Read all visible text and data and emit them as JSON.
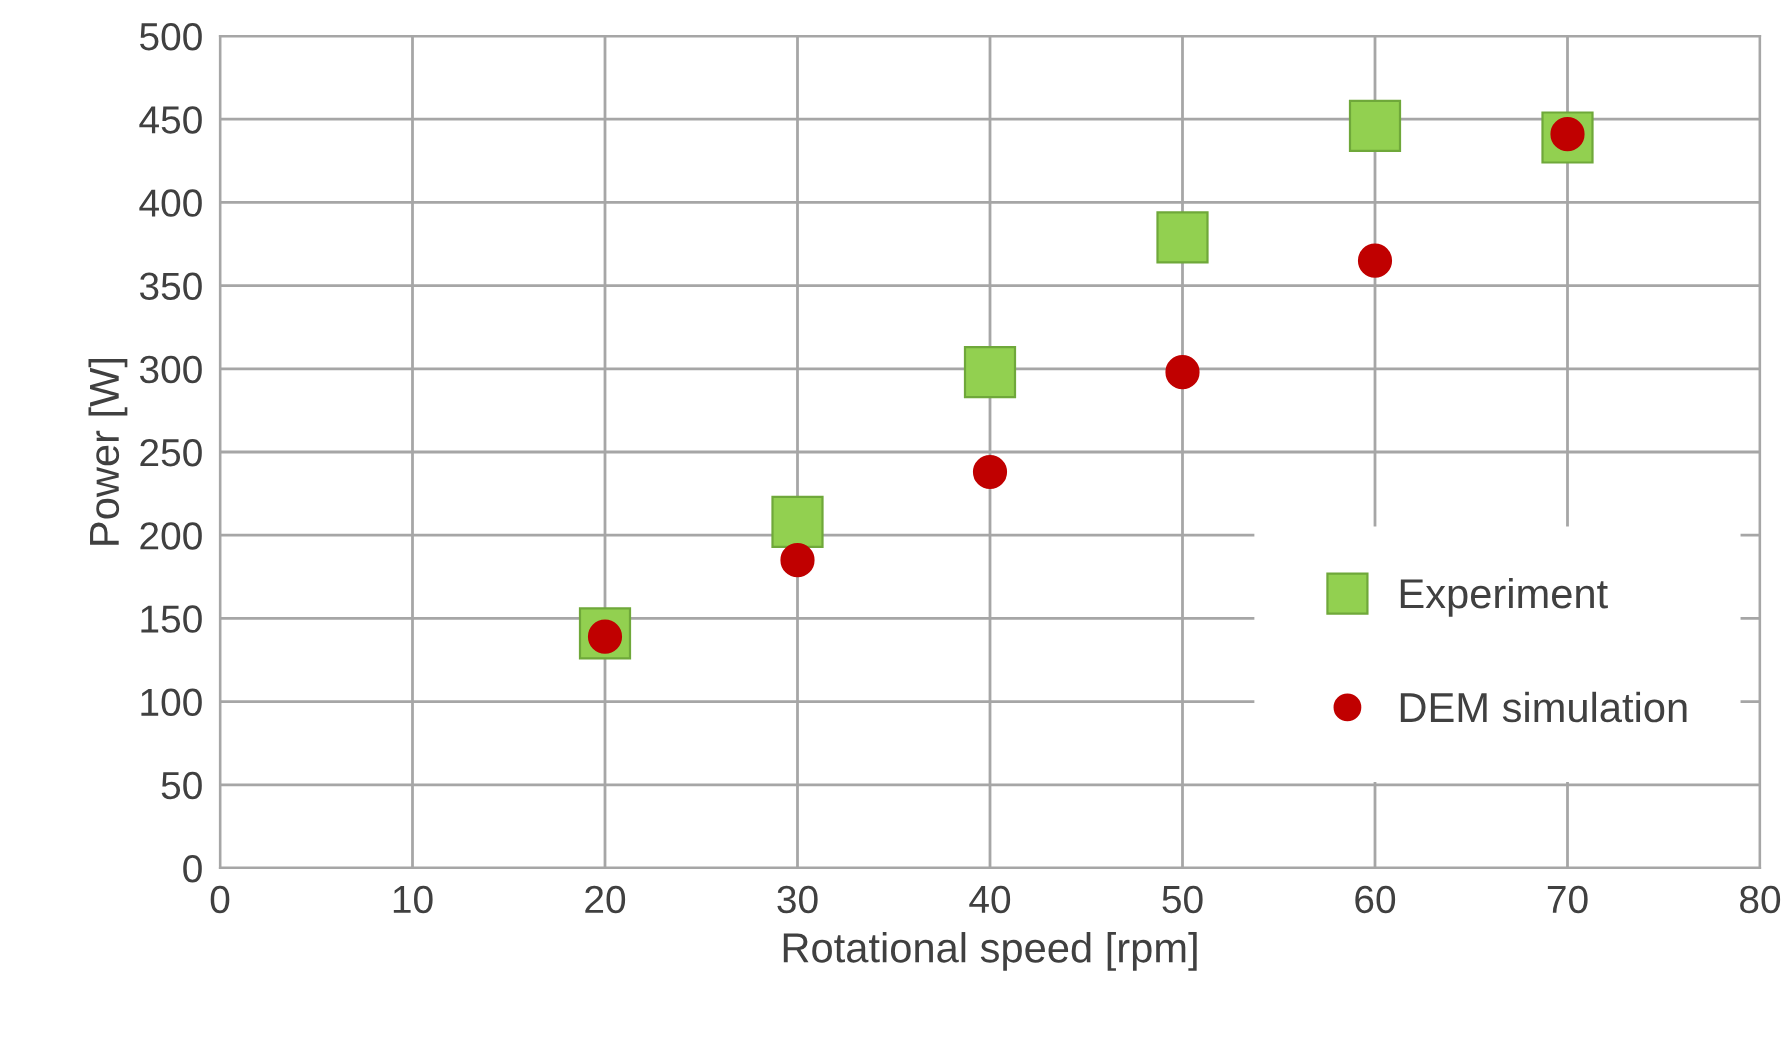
{
  "chart_data": {
    "type": "scatter",
    "xlabel": "Rotational speed [rpm]",
    "ylabel": "Power [W]",
    "xlim": [
      0,
      80
    ],
    "xticks": [
      0,
      10,
      20,
      30,
      40,
      50,
      60,
      70,
      80
    ],
    "ylim": [
      0,
      500
    ],
    "yticks": [
      0,
      50,
      100,
      150,
      200,
      250,
      300,
      350,
      400,
      450,
      500
    ],
    "grid": true,
    "legend": "bottom right",
    "series": [
      {
        "name": "Experiment",
        "color": "#92d050",
        "marker": "square",
        "x": [
          20,
          30,
          40,
          50,
          60,
          70
        ],
        "values": [
          141,
          208,
          298,
          379,
          446,
          439
        ]
      },
      {
        "name": "DEM simulation",
        "color": "#c00000",
        "marker": "circle",
        "x": [
          20,
          30,
          40,
          50,
          60,
          70
        ],
        "values": [
          139,
          185,
          238,
          298,
          365,
          441
        ]
      }
    ]
  }
}
